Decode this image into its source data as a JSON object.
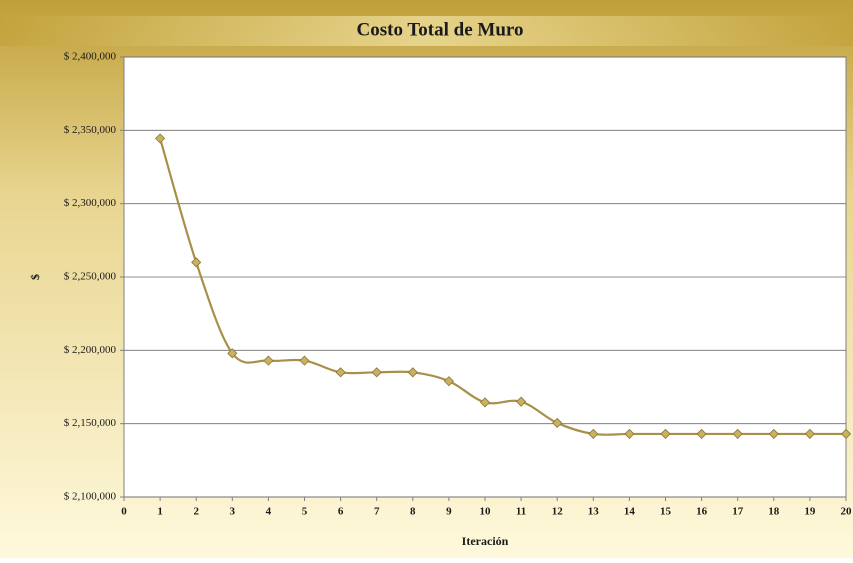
{
  "chart_data": {
    "type": "line",
    "title": "Costo Total de Muro",
    "xlabel": "Iteración",
    "ylabel": "$",
    "x": [
      1,
      2,
      3,
      4,
      5,
      6,
      7,
      8,
      9,
      10,
      11,
      12,
      13,
      14,
      15,
      16,
      17,
      18,
      19,
      20
    ],
    "values": [
      2344500,
      2260000,
      2198000,
      2193000,
      2193000,
      2185000,
      2185000,
      2185000,
      2179000,
      2164500,
      2165000,
      2150500,
      2143000,
      2143000,
      2143000,
      2143000,
      2143000,
      2143000,
      2143000,
      2143000
    ],
    "color": "#a8904a",
    "marker_color": "#c8b262",
    "smooth": true,
    "xlim": [
      0,
      20
    ],
    "xticks": [
      0,
      1,
      2,
      3,
      4,
      5,
      6,
      7,
      8,
      9,
      10,
      11,
      12,
      13,
      14,
      15,
      16,
      17,
      18,
      19,
      20
    ],
    "ylim": [
      2100000,
      2400000
    ],
    "yticks": [
      {
        "value": 2100000,
        "label": "$ 2,100,000"
      },
      {
        "value": 2150000,
        "label": "$ 2,150,000"
      },
      {
        "value": 2200000,
        "label": "$ 2,200,000"
      },
      {
        "value": 2250000,
        "label": "$ 2,250,000"
      },
      {
        "value": 2300000,
        "label": "$ 2,300,000"
      },
      {
        "value": 2350000,
        "label": "$ 2,350,000"
      },
      {
        "value": 2400000,
        "label": "$ 2,400,000"
      }
    ],
    "grid": true
  }
}
